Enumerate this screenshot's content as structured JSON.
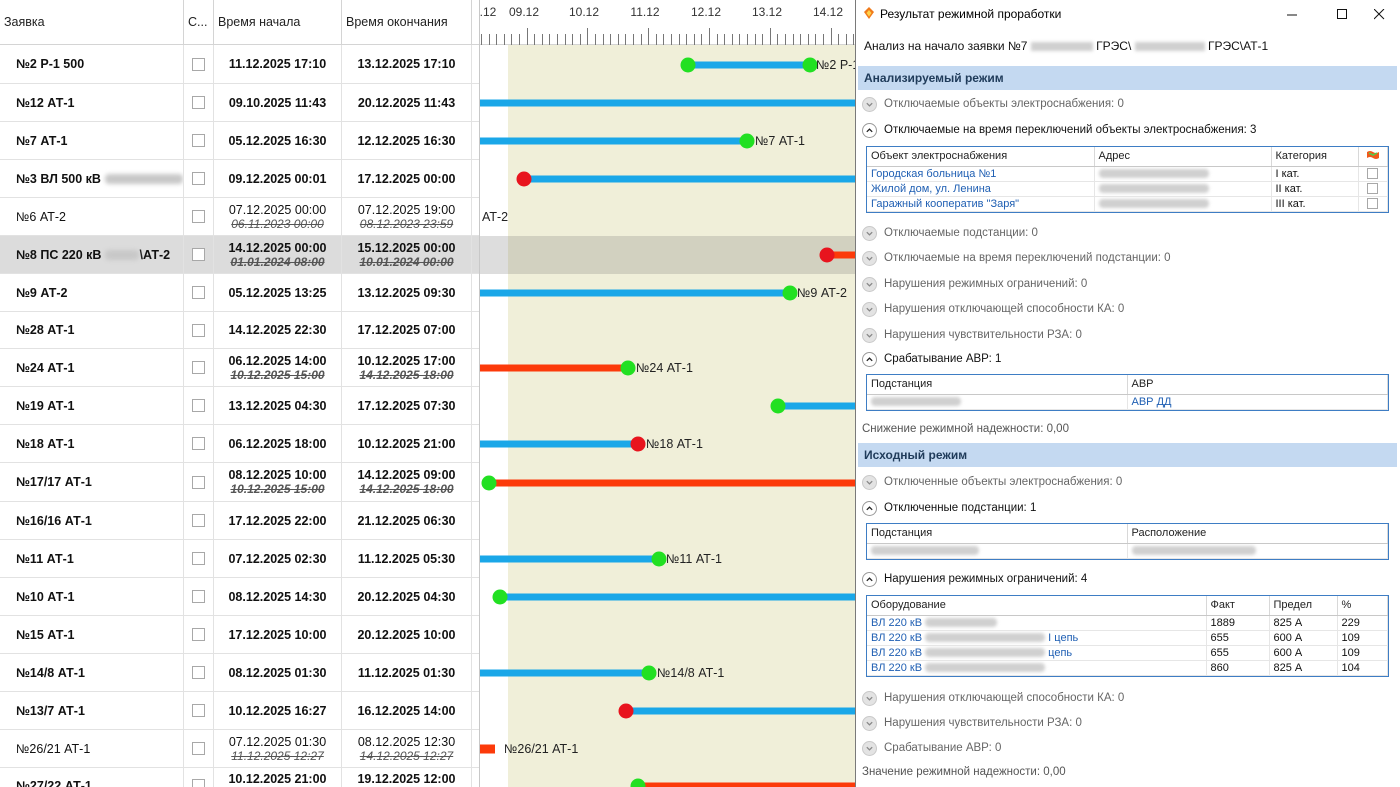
{
  "grid": {
    "columns": [
      "Заявка",
      "С...",
      "Время начала",
      "Время окончания"
    ],
    "rows": [
      {
        "name": "№2 Р-1 500",
        "start": "11.12.2025 17:10",
        "end": "13.12.2025 17:10",
        "bold": true
      },
      {
        "name": "№12 АТ-1",
        "start": "09.10.2025 11:43",
        "end": "20.12.2025 11:43",
        "bold": true
      },
      {
        "name": "№7 АТ-1",
        "start": "05.12.2025 16:30",
        "end": "12.12.2025 16:30",
        "bold": true
      },
      {
        "name": "№3 ВЛ 500 кВ",
        "start": "09.12.2025 00:01",
        "end": "17.12.2025 00:00",
        "bold": true,
        "redacted": true
      },
      {
        "name": "№6 АТ-2",
        "start": "07.12.2025 00:00",
        "start_old": "06.11.2023 00:00",
        "end": "07.12.2025 19:00",
        "end_old": "08.12.2023 23:59",
        "bold": false
      },
      {
        "name": "№8 ПС 220 кВ",
        "name_suffix": "\\АТ-2",
        "start": "14.12.2025 00:00",
        "start_old": "01.01.2024 08:00",
        "end": "15.12.2025 00:00",
        "end_old": "10.01.2024 00:00",
        "bold": true,
        "selected": true,
        "redacted": true
      },
      {
        "name": "№9 АТ-2",
        "start": "05.12.2025 13:25",
        "end": "13.12.2025 09:30",
        "bold": true
      },
      {
        "name": "№28 АТ-1",
        "start": "14.12.2025 22:30",
        "end": "17.12.2025 07:00",
        "bold": true
      },
      {
        "name": "№24 АТ-1",
        "start": "06.12.2025 14:00",
        "start_old": "10.12.2025 15:00",
        "end": "10.12.2025 17:00",
        "end_old": "14.12.2025 18:00",
        "bold": true
      },
      {
        "name": "№19 АТ-1",
        "start": "13.12.2025 04:30",
        "end": "17.12.2025 07:30",
        "bold": true
      },
      {
        "name": "№18 АТ-1",
        "start": "06.12.2025 18:00",
        "end": "10.12.2025 21:00",
        "bold": true
      },
      {
        "name": "№17/17 АТ-1",
        "start": "08.12.2025 10:00",
        "start_old": "10.12.2025 15:00",
        "end": "14.12.2025 09:00",
        "end_old": "14.12.2025 18:00",
        "bold": true
      },
      {
        "name": "№16/16 АТ-1",
        "start": "17.12.2025 22:00",
        "end": "21.12.2025 06:30",
        "bold": true
      },
      {
        "name": "№11 АТ-1",
        "start": "07.12.2025 02:30",
        "end": "11.12.2025 05:30",
        "bold": true
      },
      {
        "name": "№10 АТ-1",
        "start": "08.12.2025 14:30",
        "end": "20.12.2025 04:30",
        "bold": true
      },
      {
        "name": "№15 АТ-1",
        "start": "17.12.2025 10:00",
        "end": "20.12.2025 10:00",
        "bold": true
      },
      {
        "name": "№14/8 АТ-1",
        "start": "08.12.2025 01:30",
        "end": "11.12.2025 01:30",
        "bold": true
      },
      {
        "name": "№13/7 АТ-1",
        "start": "10.12.2025 16:27",
        "end": "16.12.2025 14:00",
        "bold": true
      },
      {
        "name": "№26/21 АТ-1",
        "start": "07.12.2025 01:30",
        "start_old": "11.12.2025 12:27",
        "end": "08.12.2025 12:30",
        "end_old": "14.12.2025 12:27",
        "bold": false
      },
      {
        "name": "№27/22 АТ-1",
        "start": "10.12.2025 21:00",
        "start_old": "11.12.2025 12:30",
        "end": "19.12.2025 12:00",
        "end_old": "14.12.2025 12:30",
        "bold": true
      }
    ]
  },
  "gantt": {
    "axis_labels": [
      ".12",
      "09.12",
      "10.12",
      "11.12",
      "12.12",
      "13.12",
      "14.12"
    ],
    "bar_labels": [
      "№2 Р-1",
      "№7 АТ-1",
      "АТ-2",
      "№9 АТ-2",
      "№24 АТ-1",
      "№18 АТ-1",
      "№11 АТ-1",
      "№14/8 АТ-1",
      "№26/21 АТ-1"
    ],
    "colors": {
      "blue": "#1aa7e8",
      "red": "#fc3a0a",
      "green": "#22e022",
      "red_dot": "#e8141e",
      "today_band": "#f0efd9"
    }
  },
  "dialog": {
    "title": "Результат режимной проработки",
    "analysis_prefix": "Анализ на начало заявки №7",
    "analysis_mid": "ГРЭС\\",
    "analysis_suffix": "ГРЭС\\АТ-1",
    "band1": "Анализируемый режим",
    "s1": "Отключаемые объекты электроснабжения: 0",
    "s2": "Отключаемые на время переключений объекты электроснабжения: 3",
    "t1_headers": [
      "Объект электроснабжения",
      "Адрес",
      "Категория"
    ],
    "t1_rows": [
      {
        "obj": "Городская больница №1",
        "cat": "I кат."
      },
      {
        "obj": "Жилой дом, ул. Ленина",
        "cat": "II кат."
      },
      {
        "obj": "Гаражный кооператив \"Заря\"",
        "cat": "III кат."
      }
    ],
    "s3": "Отключаемые подстанции: 0",
    "s4": "Отключаемые на время переключений подстанции: 0",
    "s5": "Нарушения режимных ограничений: 0",
    "s6": "Нарушения отключающей способности КА: 0",
    "s7": "Нарушения чувствительности РЗА: 0",
    "s8": "Срабатывание АВР: 1",
    "t2_headers": [
      "Подстанция",
      "АВР"
    ],
    "t2_avr": "АВР ДД",
    "reliability1": "Снижение режимной надежности: 0,00",
    "band2": "Исходный режим",
    "s9": "Отключенные объекты электроснабжения: 0",
    "s10": "Отключенные подстанции: 1",
    "t3_headers": [
      "Подстанция",
      "Расположение"
    ],
    "s11": "Нарушения режимных ограничений: 4",
    "t4_headers": [
      "Оборудование",
      "Факт",
      "Предел",
      "%"
    ],
    "t4_rows": [
      {
        "eq": "ВЛ 220 кВ",
        "suffix": "",
        "fact": "1889",
        "limit": "825 А",
        "pct": "229"
      },
      {
        "eq": "ВЛ 220 кВ",
        "suffix": "I цепь",
        "fact": "655",
        "limit": "600 А",
        "pct": "109"
      },
      {
        "eq": "ВЛ 220 кВ",
        "suffix": "цепь",
        "fact": "655",
        "limit": "600 А",
        "pct": "109"
      },
      {
        "eq": "ВЛ 220 кВ",
        "suffix": "",
        "fact": "860",
        "limit": "825 А",
        "pct": "104"
      }
    ],
    "s12": "Нарушения отключающей способности КА: 0",
    "s13": "Нарушения чувствительности РЗА: 0",
    "s14": "Срабатывание АВР: 0",
    "reliability2": "Значение режимной надежности:  0,00"
  }
}
